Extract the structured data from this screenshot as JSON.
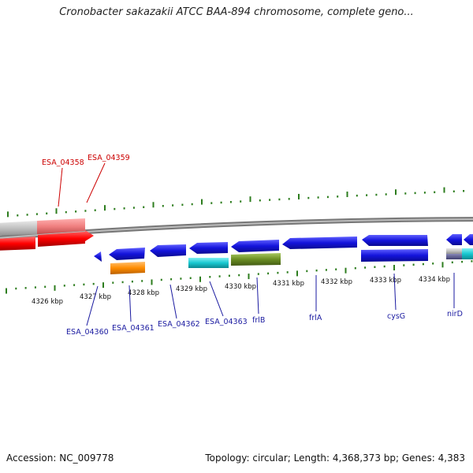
{
  "title": "Cronobacter sakazakii ATCC BAA-894 chromosome, complete geno...",
  "footer": {
    "accession": "Accession: NC_009778",
    "topology": "Topology: circular; Length: 4,368,373 bp; Genes: 4,383"
  },
  "colors": {
    "background": "#ffffff",
    "backbone": "#888888",
    "tick": "#2d7d1e",
    "label_red": "#cc0000",
    "label_blue": "#1a1aa0",
    "gene_red": "#ff0000",
    "gene_pink": "#f08080",
    "gene_gray": "#c0c0c0",
    "gene_blue": "#1414dc",
    "gene_cyan": "#18c8d0",
    "gene_olive": "#6b8e23",
    "gene_orange": "#ff8c00"
  },
  "ruler": {
    "unit": "kbp",
    "ticks": [
      "4326 kbp",
      "4327 kbp",
      "4328 kbp",
      "4329 kbp",
      "4330 kbp",
      "4331 kbp",
      "4332 kbp",
      "4333 kbp",
      "4334 kbp"
    ]
  },
  "gene_labels": [
    {
      "text": "ESA_04358",
      "color": "label_red"
    },
    {
      "text": "ESA_04359",
      "color": "label_red"
    },
    {
      "text": "ESA_04360",
      "color": "label_blue"
    },
    {
      "text": "ESA_04361",
      "color": "label_blue"
    },
    {
      "text": "ESA_04362",
      "color": "label_blue"
    },
    {
      "text": "ESA_04363",
      "color": "label_blue"
    },
    {
      "text": "frlB",
      "color": "label_blue"
    },
    {
      "text": "frlA",
      "color": "label_blue"
    },
    {
      "text": "cysG",
      "color": "label_blue"
    },
    {
      "text": "nirD",
      "color": "label_blue"
    }
  ]
}
